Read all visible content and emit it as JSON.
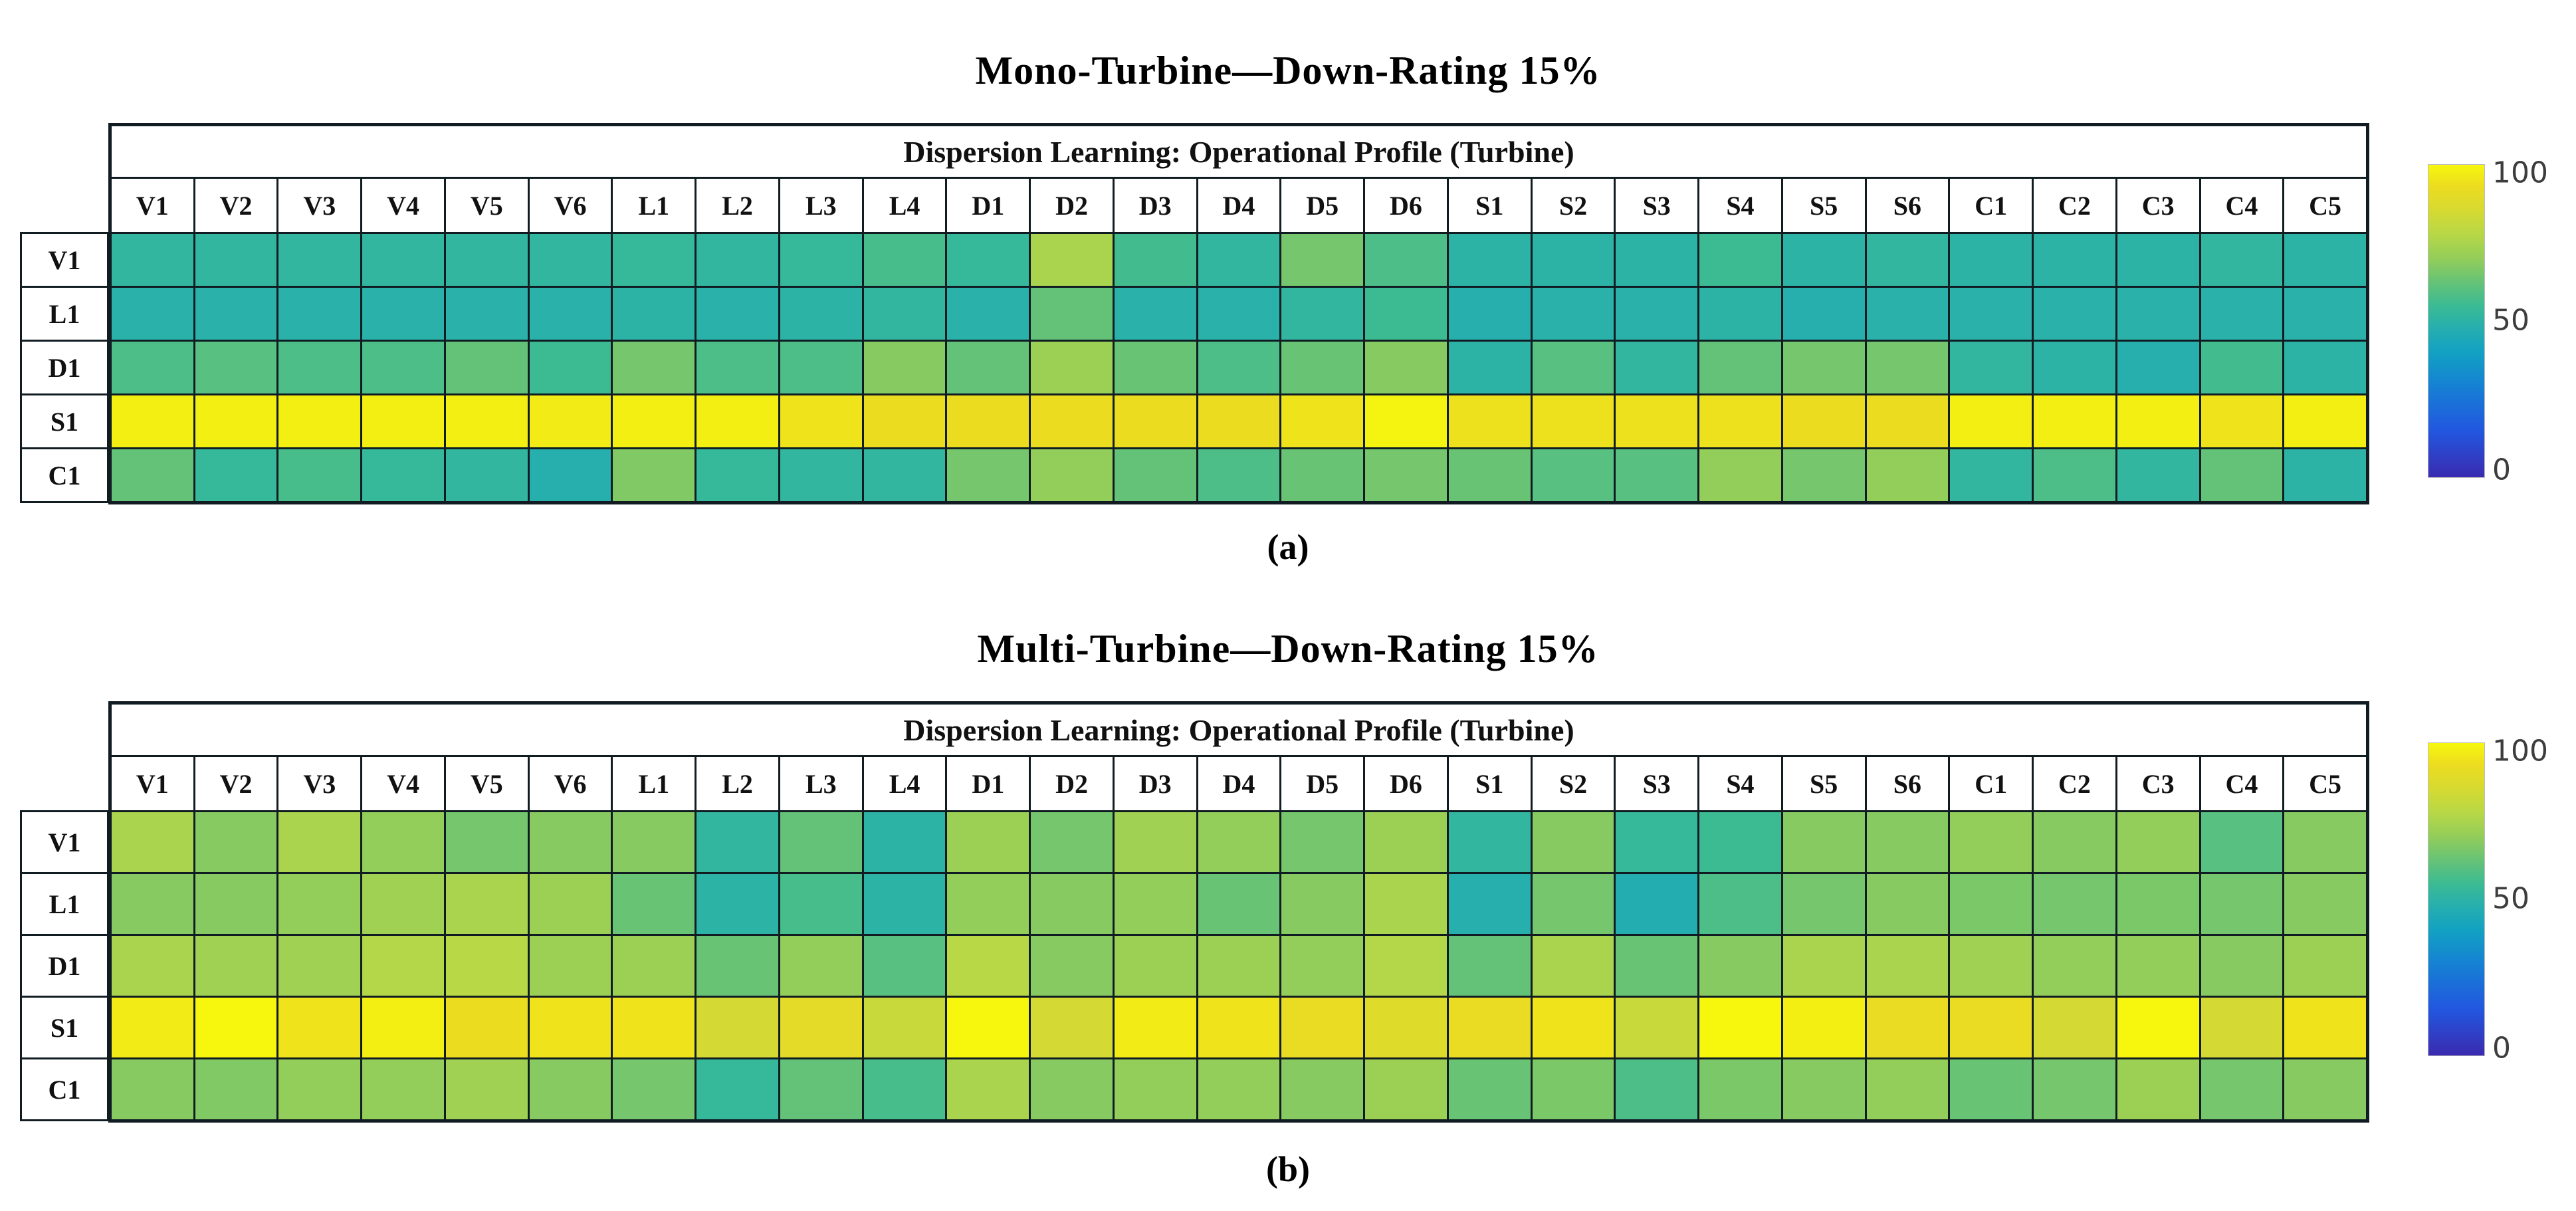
{
  "colorbar": {
    "min": 0,
    "max": 100,
    "ticks": [
      "100",
      "50",
      "0"
    ]
  },
  "colormap": {
    "name": "parula-like",
    "stops": [
      [
        0.0,
        "#3a2bb0"
      ],
      [
        0.15,
        "#2257e0"
      ],
      [
        0.3,
        "#1583d2"
      ],
      [
        0.4,
        "#12a1c3"
      ],
      [
        0.48,
        "#27afae"
      ],
      [
        0.55,
        "#3cbb93"
      ],
      [
        0.62,
        "#63c278"
      ],
      [
        0.7,
        "#93cd5a"
      ],
      [
        0.78,
        "#b8d845"
      ],
      [
        0.86,
        "#d8da30"
      ],
      [
        0.93,
        "#ecdc20"
      ],
      [
        1.0,
        "#f6f70d"
      ]
    ]
  },
  "chart_data": [
    {
      "type": "heatmap",
      "title": "Mono-Turbine—Down-Rating 15%",
      "table_header": "Dispersion Learning: Operational Profile  (Turbine)",
      "caption": "(a)",
      "columns": [
        "V1",
        "V2",
        "V3",
        "V4",
        "V5",
        "V6",
        "L1",
        "L2",
        "L3",
        "L4",
        "D1",
        "D2",
        "D3",
        "D4",
        "D5",
        "D6",
        "S1",
        "S2",
        "S3",
        "S4",
        "S5",
        "S6",
        "C1",
        "C2",
        "C3",
        "C4",
        "C5"
      ],
      "rows": [
        "V1",
        "L1",
        "D1",
        "S1",
        "C1"
      ],
      "vmin": 0,
      "vmax": 100,
      "colorbar_ticks": [
        "100",
        "50",
        "0"
      ],
      "values": [
        [
          52,
          52,
          52,
          52,
          52,
          52,
          53,
          52,
          53,
          57,
          53,
          75,
          56,
          52,
          65,
          58,
          50,
          50,
          50,
          55,
          50,
          52,
          50,
          50,
          50,
          52,
          50
        ],
        [
          49,
          49,
          49,
          49,
          49,
          49,
          50,
          49,
          50,
          52,
          49,
          62,
          49,
          49,
          52,
          55,
          48,
          49,
          49,
          50,
          48,
          49,
          49,
          49,
          49,
          49,
          49
        ],
        [
          58,
          60,
          58,
          58,
          62,
          55,
          65,
          58,
          58,
          68,
          62,
          72,
          63,
          58,
          63,
          68,
          50,
          60,
          52,
          62,
          65,
          65,
          52,
          50,
          48,
          56,
          50
        ],
        [
          98,
          98,
          98,
          98,
          98,
          97,
          98,
          98,
          95,
          93,
          93,
          93,
          93,
          93,
          95,
          99,
          94,
          94,
          94,
          94,
          93,
          93,
          98,
          98,
          98,
          95,
          98
        ],
        [
          62,
          53,
          57,
          53,
          52,
          48,
          67,
          53,
          52,
          52,
          65,
          70,
          62,
          58,
          63,
          65,
          63,
          60,
          60,
          70,
          65,
          70,
          52,
          58,
          52,
          62,
          50
        ]
      ]
    },
    {
      "type": "heatmap",
      "title": "Multi-Turbine—Down-Rating 15%",
      "table_header": "Dispersion Learning: Operational Profile  (Turbine)",
      "caption": "(b)",
      "columns": [
        "V1",
        "V2",
        "V3",
        "V4",
        "V5",
        "V6",
        "L1",
        "L2",
        "L3",
        "L4",
        "D1",
        "D2",
        "D3",
        "D4",
        "D5",
        "D6",
        "S1",
        "S2",
        "S3",
        "S4",
        "S5",
        "S6",
        "C1",
        "C2",
        "C3",
        "C4",
        "C5"
      ],
      "rows": [
        "V1",
        "L1",
        "D1",
        "S1",
        "C1"
      ],
      "vmin": 0,
      "vmax": 100,
      "colorbar_ticks": [
        "100",
        "50",
        "0"
      ],
      "values": [
        [
          75,
          68,
          75,
          70,
          65,
          68,
          68,
          52,
          62,
          50,
          72,
          65,
          73,
          70,
          65,
          72,
          52,
          68,
          53,
          55,
          68,
          68,
          70,
          68,
          70,
          60,
          68
        ],
        [
          68,
          68,
          70,
          73,
          75,
          72,
          63,
          50,
          57,
          50,
          70,
          68,
          70,
          63,
          68,
          75,
          48,
          65,
          47,
          58,
          65,
          68,
          66,
          65,
          66,
          65,
          68
        ],
        [
          75,
          73,
          73,
          77,
          78,
          72,
          72,
          63,
          70,
          60,
          78,
          68,
          72,
          72,
          70,
          77,
          62,
          75,
          63,
          68,
          75,
          75,
          73,
          70,
          70,
          68,
          72
        ],
        [
          97,
          100,
          95,
          98,
          93,
          95,
          95,
          85,
          90,
          82,
          100,
          85,
          97,
          95,
          92,
          88,
          92,
          95,
          82,
          100,
          98,
          92,
          92,
          85,
          100,
          85,
          95
        ],
        [
          68,
          67,
          70,
          70,
          73,
          68,
          65,
          53,
          62,
          57,
          75,
          68,
          70,
          70,
          68,
          72,
          63,
          66,
          58,
          66,
          68,
          70,
          63,
          65,
          72,
          65,
          68
        ]
      ]
    }
  ]
}
